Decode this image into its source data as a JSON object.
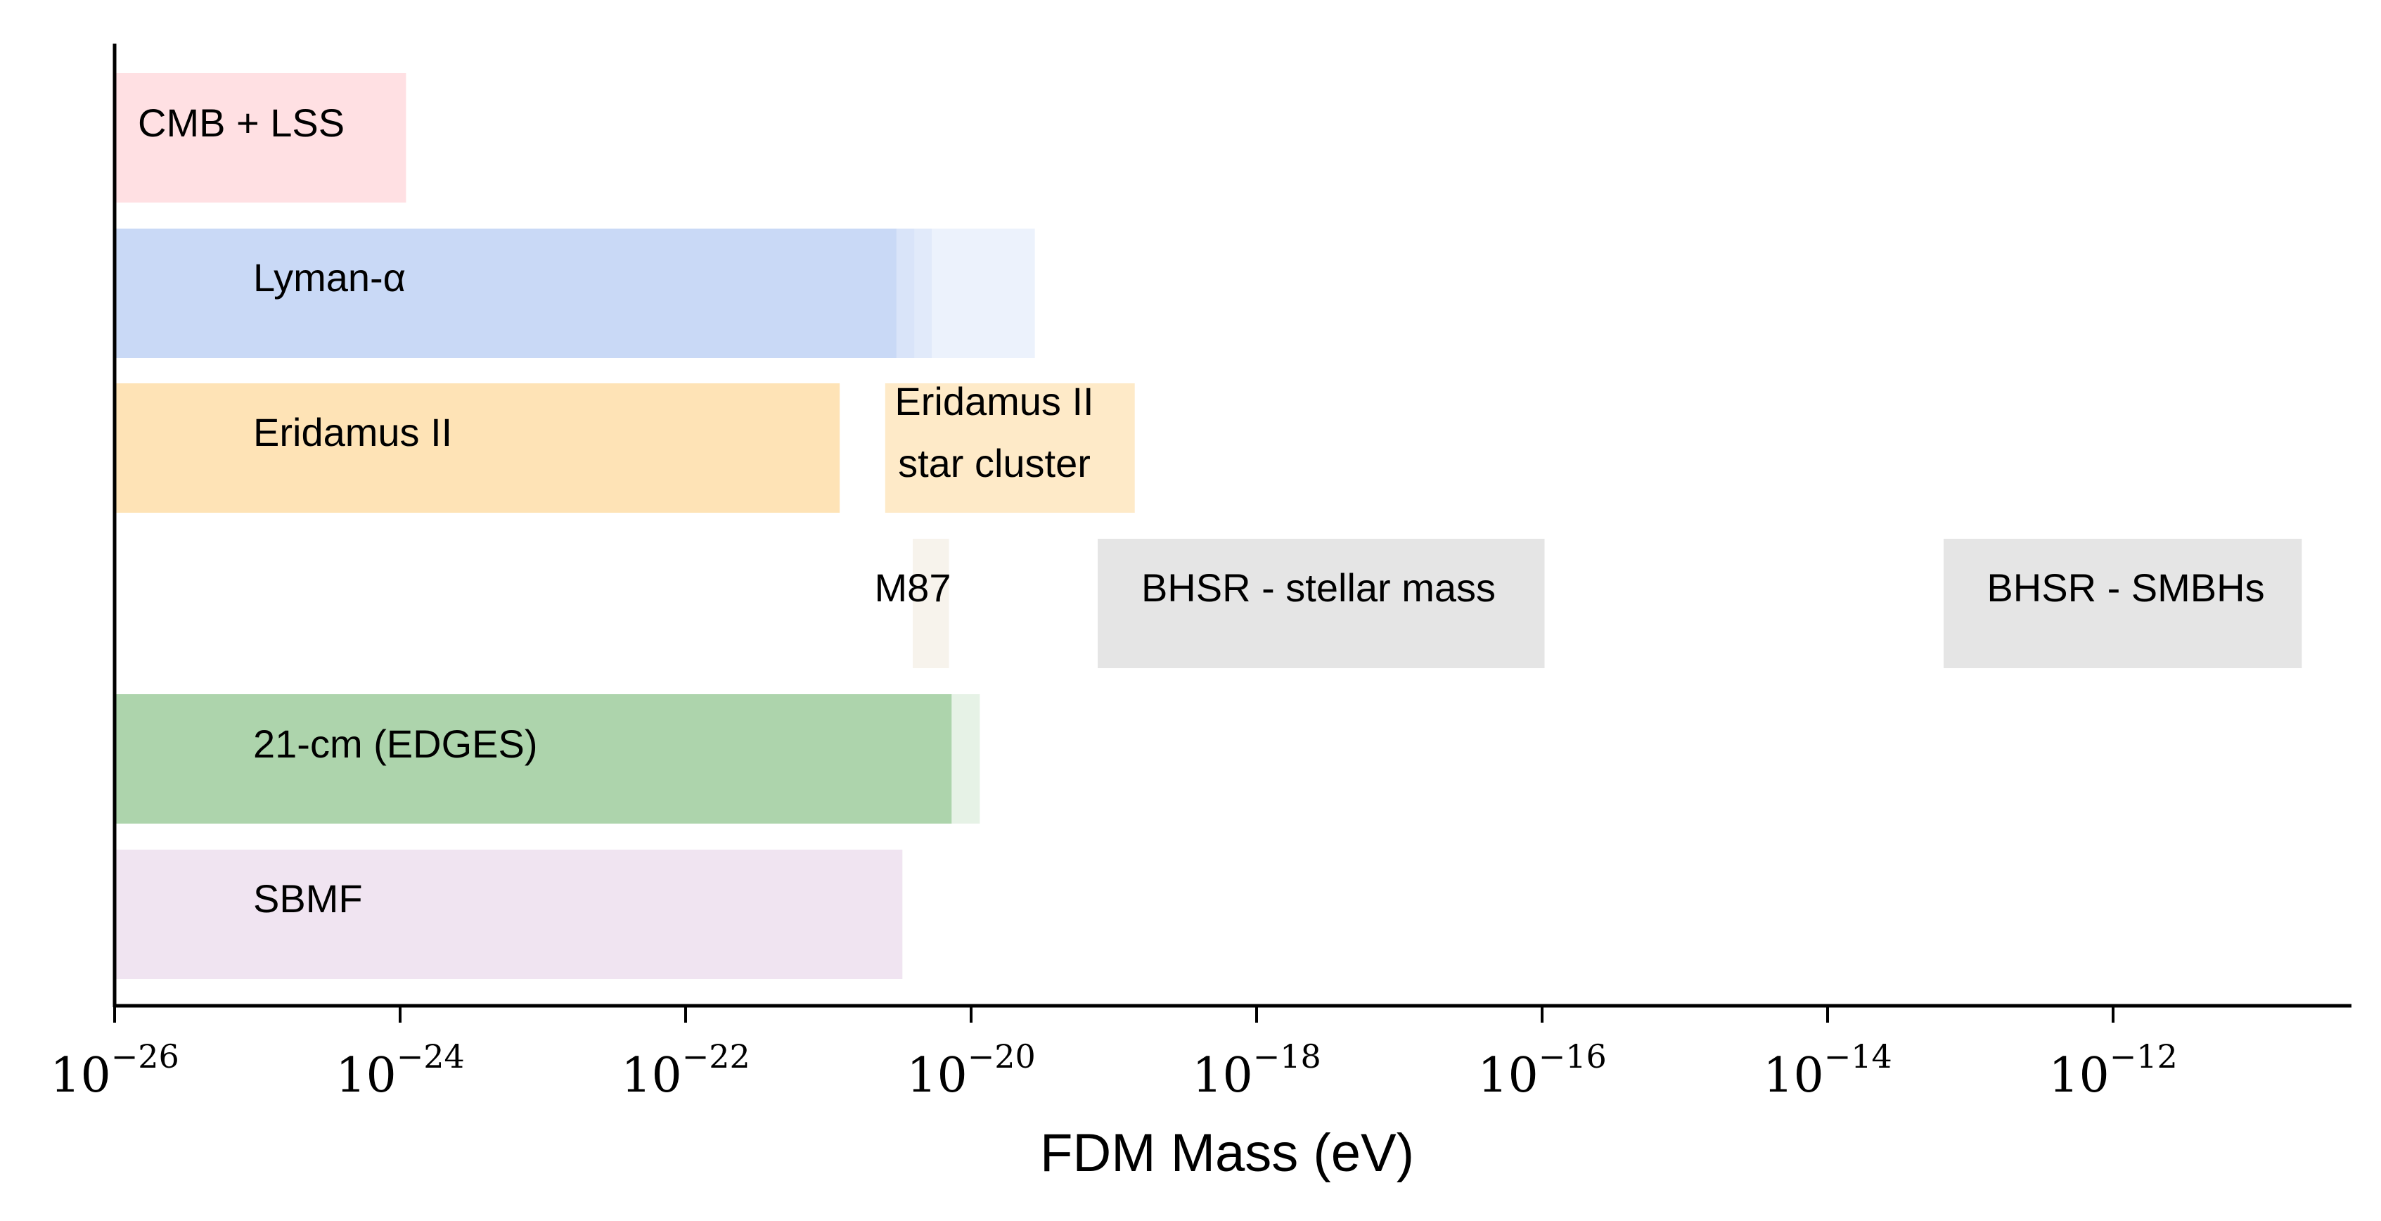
{
  "chart_data": {
    "type": "bar",
    "orientation": "horizontal",
    "title": "",
    "xlabel": "FDM Mass (eV)",
    "ylabel": "",
    "xscale": "log",
    "xlim": [
      1e-26,
      5e-11
    ],
    "grid": false,
    "legend": "none",
    "x_ticks": [
      {
        "base": "10",
        "exp": "−26",
        "value": 1e-26
      },
      {
        "base": "10",
        "exp": "−24",
        "value": 1e-24
      },
      {
        "base": "10",
        "exp": "−22",
        "value": 1e-22
      },
      {
        "base": "10",
        "exp": "−20",
        "value": 1e-20
      },
      {
        "base": "10",
        "exp": "−18",
        "value": 1e-18
      },
      {
        "base": "10",
        "exp": "−16",
        "value": 1e-16
      },
      {
        "base": "10",
        "exp": "−14",
        "value": 1e-14
      },
      {
        "base": "10",
        "exp": "−12",
        "value": 1e-12
      }
    ],
    "rows": [
      {
        "label": "CMB + LSS",
        "color": "#ffe0e3",
        "segments": [
          {
            "from": 1e-26,
            "to": 1.1e-24,
            "opacity": 1.0
          }
        ]
      },
      {
        "label": "Lyman-α",
        "color": "#c9d9f6",
        "segments": [
          {
            "from": 1e-26,
            "to": 3e-21,
            "opacity": 1.0
          },
          {
            "from": 3e-21,
            "to": 4e-21,
            "opacity": 0.7
          },
          {
            "from": 4e-21,
            "to": 5.3e-21,
            "opacity": 0.55
          },
          {
            "from": 5.3e-21,
            "to": 2.8e-20,
            "opacity": 0.35
          }
        ]
      },
      {
        "label": "Eridamus II",
        "color": "#fee3b6",
        "segments": [
          {
            "from": 1e-26,
            "to": 1.2e-21,
            "opacity": 1.0
          }
        ]
      },
      {
        "label": "Eridamus II\nstar cluster",
        "color": "#fee3b6",
        "segments": [
          {
            "from": 2.5e-21,
            "to": 1.4e-19,
            "opacity": 0.75
          }
        ]
      },
      {
        "label": "M87",
        "color": "#f2ebe0",
        "segments": [
          {
            "from": 3.9e-21,
            "to": 7e-21,
            "opacity": 0.6
          }
        ]
      },
      {
        "label": "BHSR - stellar mass",
        "color": "#e5e5e5",
        "segments": [
          {
            "from": 7.7e-20,
            "to": 1.04e-16,
            "opacity": 1.0
          }
        ]
      },
      {
        "label": "BHSR - SMBHs",
        "color": "#e5e5e5",
        "segments": [
          {
            "from": 6.5e-14,
            "to": 2.1e-11,
            "opacity": 1.0
          }
        ]
      },
      {
        "label": "21-cm (EDGES)",
        "color": "#add4ac",
        "segments": [
          {
            "from": 1e-26,
            "to": 7.3e-21,
            "opacity": 1.0
          },
          {
            "from": 7.3e-21,
            "to": 1.15e-20,
            "opacity": 0.3
          }
        ]
      },
      {
        "label": "SBMF",
        "color": "#f0e4f1",
        "segments": [
          {
            "from": 1e-26,
            "to": 3.3e-21,
            "opacity": 1.0
          }
        ]
      }
    ]
  }
}
